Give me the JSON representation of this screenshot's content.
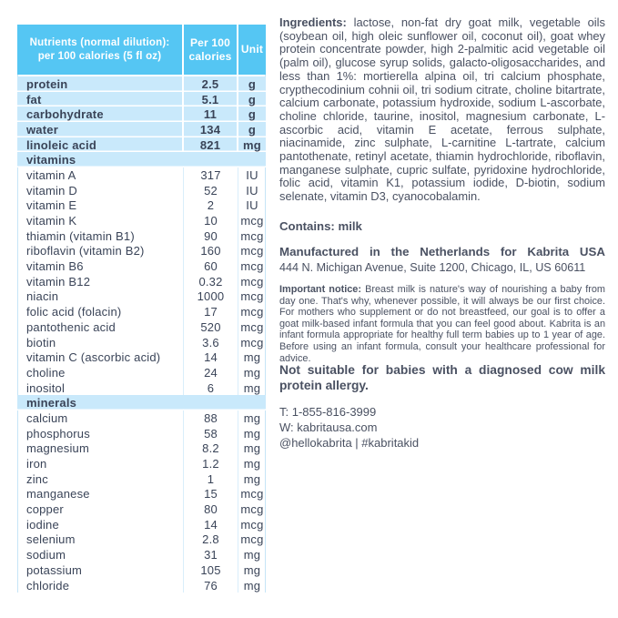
{
  "colors": {
    "header_bg": "#55c6f3",
    "row_bg": "#c9e9fb",
    "table_text": "#3a4458",
    "body_text": "#4a5162",
    "table_border": "#c6e5f7",
    "column_line": "#d9eefb"
  },
  "table": {
    "header": {
      "nutrients_col": "Nutrients (normal dilution):\nper 100 calories (5 fl oz)",
      "per100_col": "Per 100\ncalories",
      "unit_col": "Unit"
    },
    "macros": [
      {
        "label": "protein",
        "value": "2.5",
        "unit": "g"
      },
      {
        "label": "fat",
        "value": "5.1",
        "unit": "g"
      },
      {
        "label": "carbohydrate",
        "value": "11",
        "unit": "g"
      },
      {
        "label": "water",
        "value": "134",
        "unit": "g"
      },
      {
        "label": "linoleic acid",
        "value": "821",
        "unit": "mg"
      }
    ],
    "sections": [
      {
        "title": "vitamins",
        "rows": [
          {
            "label": "vitamin A",
            "value": "317",
            "unit": "IU"
          },
          {
            "label": "vitamin D",
            "value": "52",
            "unit": "IU"
          },
          {
            "label": "vitamin E",
            "value": "2",
            "unit": "IU"
          },
          {
            "label": "vitamin K",
            "value": "10",
            "unit": "mcg"
          },
          {
            "label": "thiamin (vitamin B1)",
            "value": "90",
            "unit": "mcg"
          },
          {
            "label": "riboflavin (vitamin B2)",
            "value": "160",
            "unit": "mcg"
          },
          {
            "label": "vitamin B6",
            "value": "60",
            "unit": "mcg"
          },
          {
            "label": "vitamin B12",
            "value": "0.32",
            "unit": "mcg"
          },
          {
            "label": "niacin",
            "value": "1000",
            "unit": "mcg"
          },
          {
            "label": "folic acid (folacin)",
            "value": "17",
            "unit": "mcg"
          },
          {
            "label": "pantothenic acid",
            "value": "520",
            "unit": "mcg"
          },
          {
            "label": "biotin",
            "value": "3.6",
            "unit": "mcg"
          },
          {
            "label": "vitamin C (ascorbic acid)",
            "value": "14",
            "unit": "mg"
          },
          {
            "label": "choline",
            "value": "24",
            "unit": "mg"
          },
          {
            "label": "inositol",
            "value": "6",
            "unit": "mg"
          }
        ]
      },
      {
        "title": "minerals",
        "rows": [
          {
            "label": "calcium",
            "value": "88",
            "unit": "mg"
          },
          {
            "label": "phosphorus",
            "value": "58",
            "unit": "mg"
          },
          {
            "label": "magnesium",
            "value": "8.2",
            "unit": "mg"
          },
          {
            "label": "iron",
            "value": "1.2",
            "unit": "mg"
          },
          {
            "label": "zinc",
            "value": "1",
            "unit": "mg"
          },
          {
            "label": "manganese",
            "value": "15",
            "unit": "mcg"
          },
          {
            "label": "copper",
            "value": "80",
            "unit": "mcg"
          },
          {
            "label": "iodine",
            "value": "14",
            "unit": "mcg"
          },
          {
            "label": "selenium",
            "value": "2.8",
            "unit": "mcg"
          },
          {
            "label": "sodium",
            "value": "31",
            "unit": "mg"
          },
          {
            "label": "potassium",
            "value": "105",
            "unit": "mg"
          },
          {
            "label": "chloride",
            "value": "76",
            "unit": "mg"
          }
        ]
      }
    ]
  },
  "right": {
    "ingredients_label": "Ingredients:",
    "ingredients_text": "lactose, non-fat dry goat milk, vegetable oils (soybean oil, high oleic sunflower oil, coconut oil), goat whey protein concentrate powder, high 2-palmitic acid vegetable oil (palm oil), glucose syrup solids, galacto-oligosaccharides, and less than 1%: mortierella alpina oil, tri calcium phosphate, crypthecodinium cohnii oil, tri sodium citrate, choline bitartrate, calcium carbonate, potassium hydroxide, sodium L-ascorbate, choline chloride, taurine, inositol, magnesium carbonate, L-ascorbic acid, vitamin E acetate, ferrous sulphate, niacinamide, zinc sulphate, L-carnitine L-tartrate, calcium pantothenate, retinyl acetate, thiamin hydrochloride, riboflavin, manganese sulphate, cupric sulfate, pyridoxine hydrochloride, folic acid, vitamin K1, potassium iodide, D-biotin, sodium selenate, vitamin D3, cyanocobalamin.",
    "contains": "Contains: milk",
    "manufactured": "Manufactured in the Netherlands for Kabrita USA",
    "address": "444 N. Michigan Avenue, Suite 1200, Chicago, IL, US 60611",
    "notice_label": "Important notice:",
    "notice_text": "Breast milk is nature's way of nourishing a baby from day one. That's why, whenever possible, it will always be our first choice. For mothers who supplement or do not breastfeed, our goal is to offer a goat milk-based infant formula that you can feel good about. Kabrita is an infant formula appropriate for healthy full term babies up to 1 year of age. Before using an infant formula, consult your healthcare professional for advice.",
    "warning": "Not suitable for babies with a diagnosed cow milk protein allergy.",
    "phone": "T: 1-855-816-3999",
    "web": "W: kabritausa.com",
    "social": "@hellokabrita | #kabritakid"
  }
}
